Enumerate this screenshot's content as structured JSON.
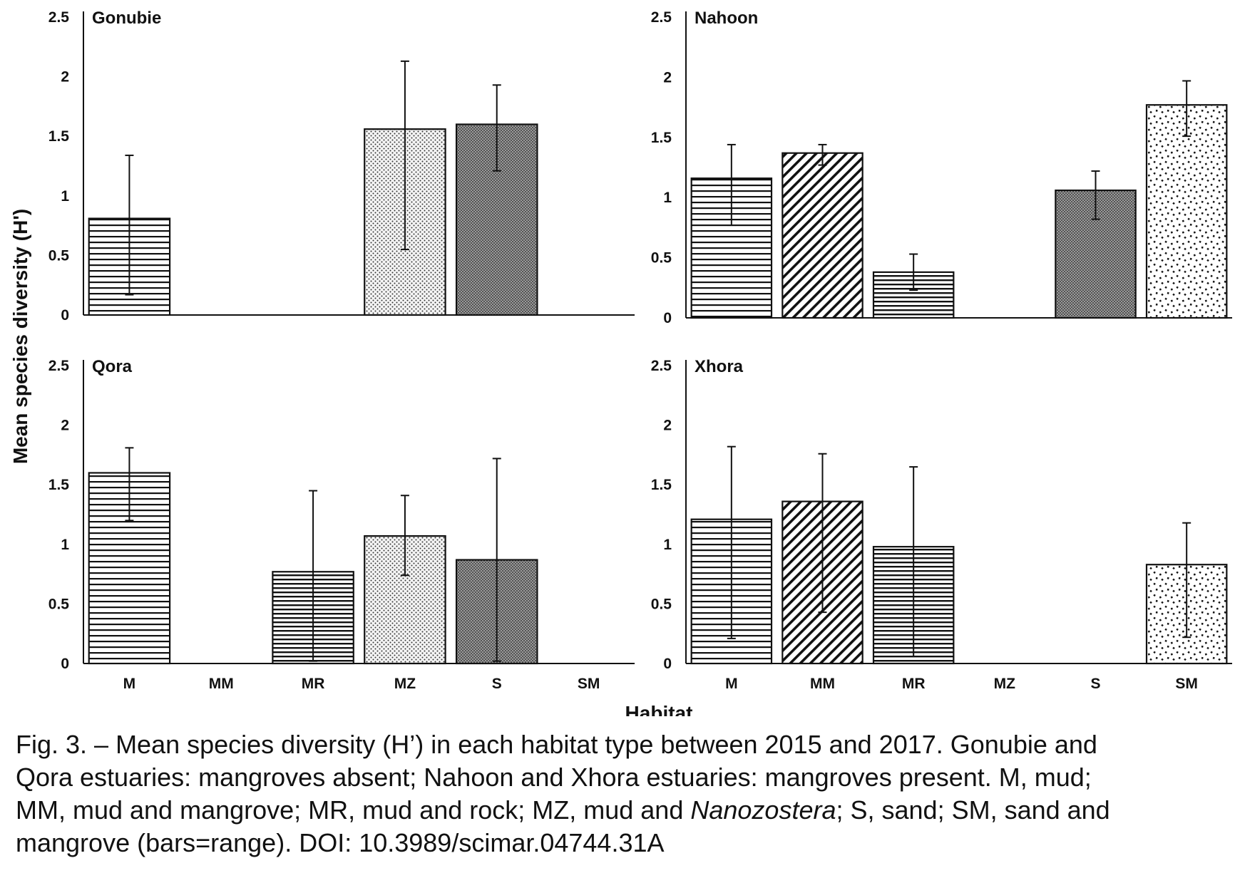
{
  "chart_data": {
    "type": "bar",
    "categories": [
      "M",
      "MM",
      "MR",
      "MZ",
      "S",
      "SM"
    ],
    "xlabel": "Habitat",
    "ylabel": "Mean species diversity (H')",
    "ylim": [
      0,
      2.5
    ],
    "yticks": [
      "0",
      "0.5",
      "1",
      "1.5",
      "2",
      "2.5"
    ],
    "error_bars": "range",
    "panels": [
      {
        "title": "Gonubie",
        "values": [
          0.81,
          null,
          null,
          1.56,
          1.6,
          null
        ],
        "err_low": [
          0.17,
          null,
          null,
          0.55,
          1.21,
          null
        ],
        "err_high": [
          1.34,
          null,
          null,
          2.13,
          1.93,
          null
        ]
      },
      {
        "title": "Nahoon",
        "values": [
          1.16,
          1.37,
          0.38,
          null,
          1.06,
          1.77
        ],
        "err_low": [
          0.77,
          1.27,
          0.23,
          null,
          0.82,
          1.51
        ],
        "err_high": [
          1.44,
          1.44,
          0.53,
          null,
          1.22,
          1.97
        ]
      },
      {
        "title": "Qora",
        "values": [
          1.6,
          null,
          0.77,
          1.07,
          0.87,
          null
        ],
        "err_low": [
          1.2,
          null,
          0.02,
          0.74,
          0.02,
          null
        ],
        "err_high": [
          1.81,
          null,
          1.45,
          1.41,
          1.72,
          null
        ]
      },
      {
        "title": "Xhora",
        "values": [
          1.21,
          1.36,
          0.98,
          null,
          null,
          0.83
        ],
        "err_low": [
          0.21,
          0.43,
          0.06,
          null,
          null,
          0.22
        ],
        "err_high": [
          1.82,
          1.76,
          1.65,
          null,
          null,
          1.18
        ]
      }
    ]
  },
  "caption": {
    "line1": "Fig. 3. – Mean species diversity (H’) in each habitat type between 2015 and 2017. Gonubie and",
    "line2": "Qora estuaries: mangroves absent; Nahoon and Xhora estuaries: mangroves present. M, mud;",
    "line3a": "MM, mud and mangrove; MR, mud and rock; MZ, mud and ",
    "line3_italic": "Nanozostera",
    "line3b": "; S, sand; SM, sand and",
    "line4": "mangrove (bars=range). DOI: 10.3989/scimar.04744.31A"
  }
}
